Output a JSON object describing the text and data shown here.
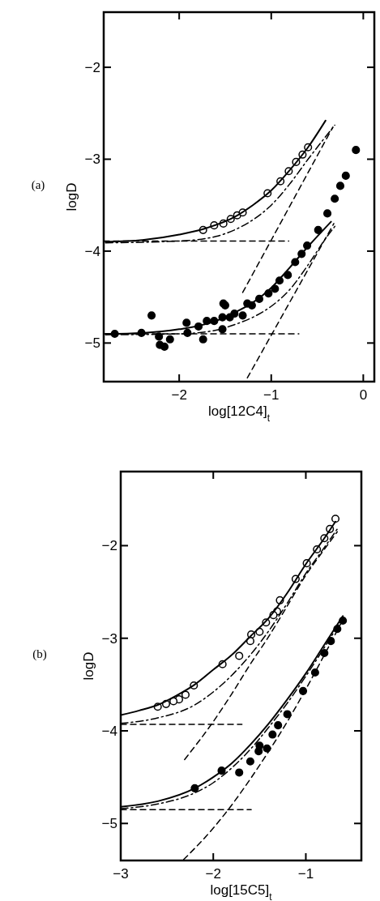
{
  "chart_data": [
    {
      "type": "scatter",
      "xlabel": "log[12C4]$_{t}$",
      "ylabel": "logD",
      "annotations": [
        "(a)"
      ],
      "xlim": [
        -2.82,
        0.12
      ],
      "ylim": [
        -5.42,
        -1.4
      ],
      "xticks": [
        -2,
        -1,
        0
      ],
      "yticks": [
        -2,
        -3,
        -4,
        -5
      ],
      "grid": false,
      "series": [
        {
          "marker": "circle",
          "color": "#ffffff",
          "x": [
            -1.74,
            -1.62,
            -1.52,
            -1.44,
            -1.37,
            -1.31,
            -1.04,
            -0.9,
            -0.81,
            -0.73,
            -0.66,
            -0.6
          ],
          "values": [
            -3.77,
            -3.72,
            -3.7,
            -3.65,
            -3.61,
            -3.58,
            -3.37,
            -3.24,
            -3.13,
            -3.03,
            -2.95,
            -2.87
          ]
        },
        {
          "marker": "circle",
          "color": "#000000",
          "x": [
            -2.7,
            -2.41,
            -2.3,
            -2.22,
            -2.21,
            -2.16,
            -2.1,
            -1.92,
            -1.91,
            -1.79,
            -1.74,
            -1.7,
            -1.62,
            -1.53,
            -1.53,
            -1.52,
            -1.5,
            -1.45,
            -1.4,
            -1.31,
            -1.26,
            -1.21,
            -1.13,
            -1.03,
            -0.96,
            -0.91,
            -0.82,
            -0.74,
            -0.67,
            -0.61,
            -0.49,
            -0.39,
            -0.31,
            -0.25,
            -0.19,
            -0.08
          ],
          "values": [
            -4.9,
            -4.89,
            -4.7,
            -4.93,
            -5.02,
            -5.04,
            -4.96,
            -4.78,
            -4.89,
            -4.82,
            -4.96,
            -4.76,
            -4.76,
            -4.72,
            -4.85,
            -4.57,
            -4.59,
            -4.72,
            -4.68,
            -4.7,
            -4.57,
            -4.59,
            -4.52,
            -4.46,
            -4.41,
            -4.32,
            -4.26,
            -4.12,
            -4.03,
            -3.94,
            -3.77,
            -3.59,
            -3.43,
            -3.29,
            -3.18,
            -2.9
          ]
        },
        {
          "type": "line",
          "line_style": "solid",
          "color": "#000000",
          "x": [
            -2.8,
            -2.4,
            -2.0,
            -1.74,
            -1.4,
            -1.2,
            -1.0,
            -0.8,
            -0.6,
            -0.41
          ],
          "values": [
            -3.9,
            -3.88,
            -3.82,
            -3.76,
            -3.63,
            -3.5,
            -3.34,
            -3.12,
            -2.87,
            -2.58
          ]
        },
        {
          "type": "line",
          "line_style": "dashdot",
          "color": "#000000",
          "x": [
            -2.8,
            -2.0,
            -1.6,
            -1.4,
            -1.2,
            -1.0,
            -0.8,
            -0.6,
            -0.31
          ],
          "values": [
            -3.91,
            -3.89,
            -3.84,
            -3.77,
            -3.66,
            -3.5,
            -3.27,
            -3.0,
            -2.63
          ]
        },
        {
          "type": "line",
          "line_style": "dashed",
          "color": "#000000",
          "x": [
            -2.82,
            -0.81
          ],
          "values": [
            -3.89,
            -3.89
          ]
        },
        {
          "type": "line",
          "line_style": "dashed",
          "color": "#000000",
          "x": [
            -1.31,
            -0.33
          ],
          "values": [
            -4.45,
            -2.65
          ]
        },
        {
          "type": "line",
          "line_style": "solid",
          "color": "#000000",
          "x": [
            -2.8,
            -2.4,
            -2.0,
            -1.6,
            -1.4,
            -1.2,
            -1.0,
            -0.8,
            -0.6,
            -0.35
          ],
          "values": [
            -4.9,
            -4.89,
            -4.85,
            -4.76,
            -4.67,
            -4.56,
            -4.4,
            -4.18,
            -3.95,
            -3.68
          ]
        },
        {
          "type": "line",
          "line_style": "dashdot",
          "color": "#000000",
          "x": [
            -2.8,
            -2.0,
            -1.6,
            -1.4,
            -1.2,
            -1.0,
            -0.8,
            -0.6,
            -0.4,
            -0.3
          ],
          "values": [
            -4.91,
            -4.9,
            -4.86,
            -4.8,
            -4.72,
            -4.6,
            -4.42,
            -4.15,
            -3.85,
            -3.72
          ]
        },
        {
          "type": "line",
          "line_style": "dashed",
          "color": "#000000",
          "x": [
            -2.82,
            -0.7
          ],
          "values": [
            -4.9,
            -4.9
          ]
        },
        {
          "type": "line",
          "line_style": "dashed",
          "color": "#000000",
          "x": [
            -1.26,
            -0.32
          ],
          "values": [
            -5.38,
            -3.7
          ]
        }
      ]
    },
    {
      "type": "scatter",
      "xlabel": "log[15C5]$_{t}$",
      "ylabel": "logD",
      "annotations": [
        "(b)"
      ],
      "xlim": [
        -3,
        -0.4
      ],
      "ylim": [
        -5.4,
        -1.2
      ],
      "xticks": [
        -3,
        -2,
        -1
      ],
      "yticks": [
        -2,
        -3,
        -4,
        -5
      ],
      "grid": false,
      "series": [
        {
          "marker": "circle",
          "color": "#ffffff",
          "x": [
            -0.68,
            -0.74,
            -0.8,
            -0.88,
            -0.99,
            -1.11,
            -1.28,
            -1.31,
            -1.35,
            -1.43,
            -1.5,
            -1.59,
            -1.6,
            -1.72,
            -1.9,
            -2.21,
            -2.3,
            -2.37,
            -2.43,
            -2.51,
            -2.6
          ],
          "values": [
            -1.71,
            -1.82,
            -1.92,
            -2.04,
            -2.19,
            -2.36,
            -2.59,
            -2.71,
            -2.75,
            -2.83,
            -2.93,
            -2.96,
            -3.03,
            -3.19,
            -3.28,
            -3.51,
            -3.61,
            -3.66,
            -3.68,
            -3.71,
            -3.74
          ]
        },
        {
          "marker": "circle",
          "color": "#000000",
          "x": [
            -0.6,
            -0.66,
            -0.73,
            -0.8,
            -0.9,
            -1.03,
            -1.2,
            -1.3,
            -1.36,
            -1.42,
            -1.5,
            -1.51,
            -1.6,
            -1.72,
            -1.91,
            -2.2
          ],
          "values": [
            -2.81,
            -2.9,
            -3.03,
            -3.16,
            -3.37,
            -3.57,
            -3.82,
            -3.94,
            -4.04,
            -4.19,
            -4.16,
            -4.22,
            -4.33,
            -4.45,
            -4.43,
            -4.62
          ]
        },
        {
          "type": "line",
          "line_style": "solid",
          "color": "#000000",
          "x": [
            -3,
            -2.8,
            -2.6,
            -2.4,
            -2.2,
            -2.0,
            -1.8,
            -1.6,
            -1.4,
            -1.2,
            -1.0,
            -0.8,
            -0.68
          ],
          "values": [
            -3.83,
            -3.78,
            -3.72,
            -3.62,
            -3.5,
            -3.34,
            -3.18,
            -2.98,
            -2.78,
            -2.51,
            -2.2,
            -1.92,
            -1.74
          ]
        },
        {
          "type": "line",
          "line_style": "dashdot",
          "color": "#000000",
          "x": [
            -3,
            -2.6,
            -2.2,
            -2.0,
            -1.8,
            -1.6,
            -1.4,
            -1.2,
            -1.0,
            -0.8,
            -0.66
          ],
          "values": [
            -3.92,
            -3.86,
            -3.72,
            -3.58,
            -3.4,
            -3.18,
            -2.92,
            -2.62,
            -2.3,
            -2.02,
            -1.82
          ]
        },
        {
          "type": "line",
          "line_style": "dashed",
          "color": "#000000",
          "x": [
            -3,
            -1.69
          ],
          "values": [
            -3.93,
            -3.93
          ]
        },
        {
          "type": "line",
          "line_style": "dashed",
          "color": "#000000",
          "x": [
            -2.31,
            -2.0,
            -1.8,
            -1.6,
            -1.4,
            -1.2,
            -1.0,
            -0.8,
            -0.66
          ],
          "values": [
            -4.31,
            -3.9,
            -3.6,
            -3.28,
            -2.98,
            -2.65,
            -2.32,
            -2.04,
            -1.85
          ]
        },
        {
          "type": "line",
          "line_style": "solid",
          "color": "#000000",
          "x": [
            -3,
            -2.6,
            -2.2,
            -2.0,
            -1.8,
            -1.6,
            -1.4,
            -1.2,
            -1.0,
            -0.8,
            -0.6
          ],
          "values": [
            -4.82,
            -4.76,
            -4.62,
            -4.5,
            -4.35,
            -4.15,
            -3.92,
            -3.66,
            -3.38,
            -3.07,
            -2.76
          ]
        },
        {
          "type": "line",
          "line_style": "dashdot",
          "color": "#000000",
          "x": [
            -3,
            -2.6,
            -2.2,
            -2.0,
            -1.8,
            -1.6,
            -1.4,
            -1.2,
            -1.0,
            -0.8,
            -0.6
          ],
          "values": [
            -4.84,
            -4.79,
            -4.67,
            -4.56,
            -4.4,
            -4.2,
            -3.96,
            -3.7,
            -3.41,
            -3.1,
            -2.78
          ]
        },
        {
          "type": "line",
          "line_style": "dashed",
          "color": "#000000",
          "x": [
            -3,
            -1.59
          ],
          "values": [
            -4.85,
            -4.85
          ]
        },
        {
          "type": "line",
          "line_style": "dashed",
          "color": "#000000",
          "x": [
            -2.32,
            -2.0,
            -1.8,
            -1.6,
            -1.4,
            -1.2,
            -1.0,
            -0.8,
            -0.6
          ],
          "values": [
            -5.39,
            -5.05,
            -4.8,
            -4.52,
            -4.22,
            -3.9,
            -3.55,
            -3.18,
            -2.8
          ]
        }
      ]
    }
  ]
}
